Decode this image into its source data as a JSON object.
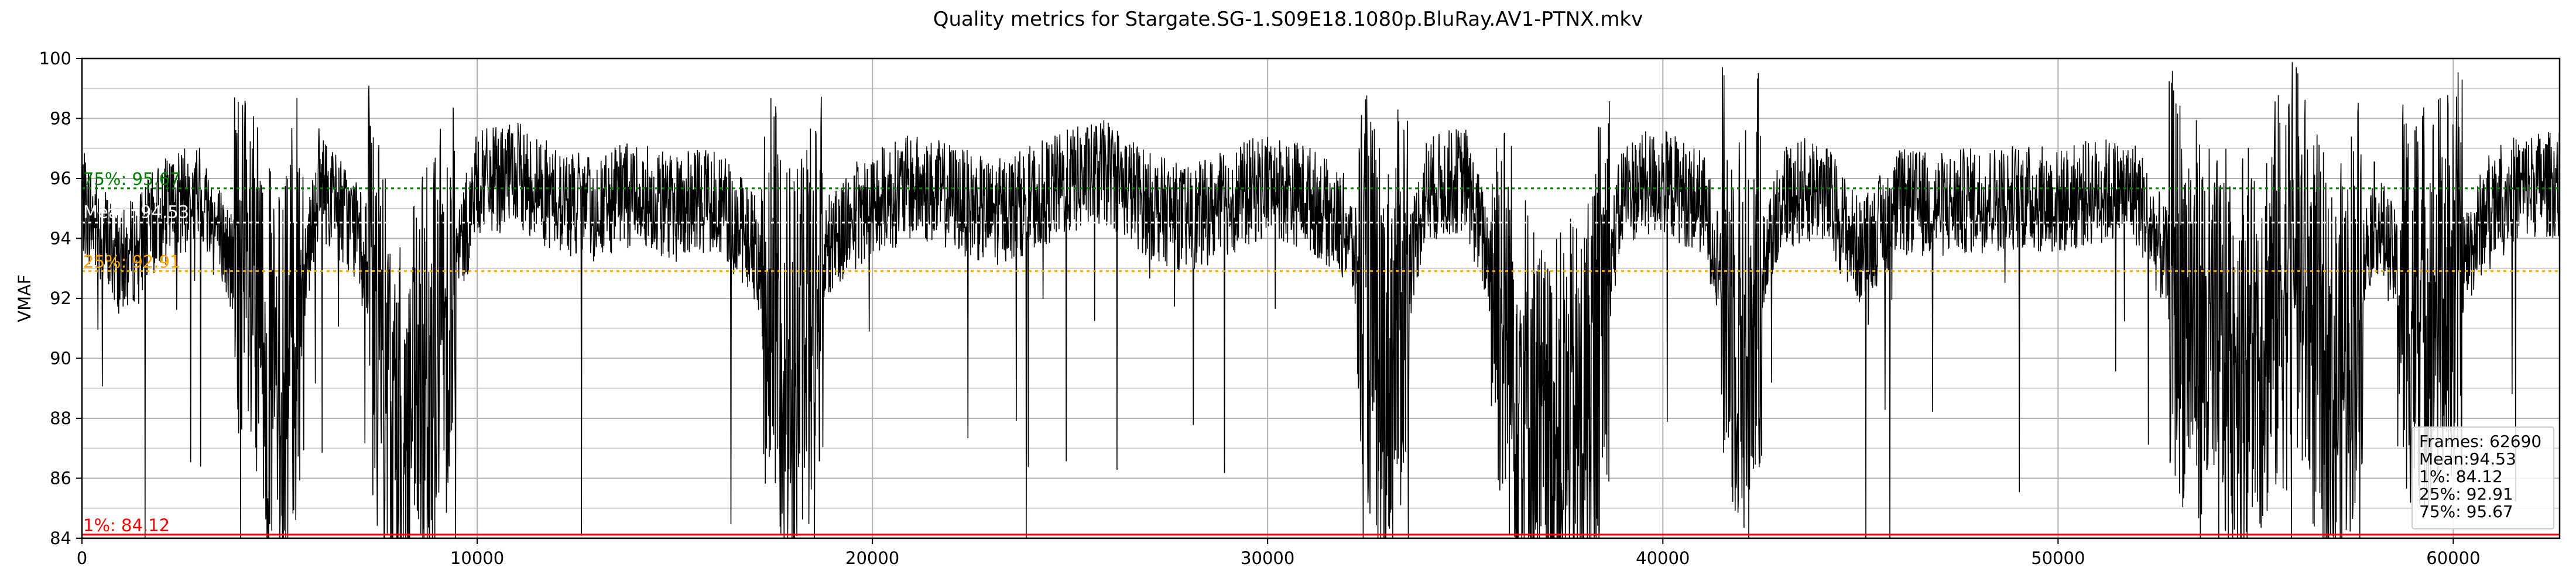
{
  "chart_data": {
    "type": "line",
    "title": "Quality metrics for Stargate.SG-1.S09E18.1080p.BluRay.AV1-PTNX.mkv",
    "xlabel": "",
    "ylabel": "VMAF",
    "xlim": [
      0,
      62690
    ],
    "ylim": [
      84,
      100
    ],
    "x_ticks": [
      0,
      10000,
      20000,
      30000,
      40000,
      50000,
      60000
    ],
    "y_ticks": [
      84,
      86,
      88,
      90,
      92,
      94,
      96,
      98,
      100
    ],
    "grid": true,
    "series": [
      {
        "color": "#000000",
        "values_sample_step_frames": 1000,
        "values": [
          95.2,
          93.1,
          94.8,
          95.5,
          92.6,
          88.4,
          95.9,
          94.2,
          86.5,
          90.7,
          95.8,
          96.1,
          95.3,
          94.9,
          95.6,
          95.0,
          95.4,
          93.8,
          89.6,
          94.1,
          95.2,
          95.7,
          95.4,
          94.8,
          95.3,
          95.9,
          96.2,
          95.1,
          94.6,
          95.2,
          95.8,
          95.4,
          94.3,
          89.5,
          95.6,
          96.0,
          91.4,
          86.8,
          88.1,
          95.6,
          95.9,
          95.2,
          90.6,
          95.4,
          95.7,
          93.5,
          95.2,
          95.1,
          95.3,
          95.4,
          95.2,
          95.6,
          95.5,
          92.4,
          89.8,
          90.6,
          93.1,
          88.6,
          94.8,
          91.7,
          92.3,
          95.4,
          95.8
        ]
      }
    ],
    "reference_lines": [
      {
        "name": "Mean",
        "label": "Mean: 94.53",
        "value": 94.53,
        "color": "#ffffff",
        "style": "dotted"
      },
      {
        "name": "1%",
        "label": "1%: 84.12",
        "value": 84.12,
        "color": "#ff0000",
        "style": "solid"
      },
      {
        "name": "25%",
        "label": "25%: 92.91",
        "value": 92.91,
        "color": "#ffa500",
        "style": "dotted"
      },
      {
        "name": "75%",
        "label": "75%: 95.67",
        "value": 95.67,
        "color": "#008000",
        "style": "dotted"
      }
    ],
    "legend": {
      "placement": "bottom-right",
      "entries": [
        "Frames: 62690",
        "Mean:94.53",
        "1%: 84.12",
        "25%: 92.91",
        "75%: 95.67"
      ]
    }
  }
}
